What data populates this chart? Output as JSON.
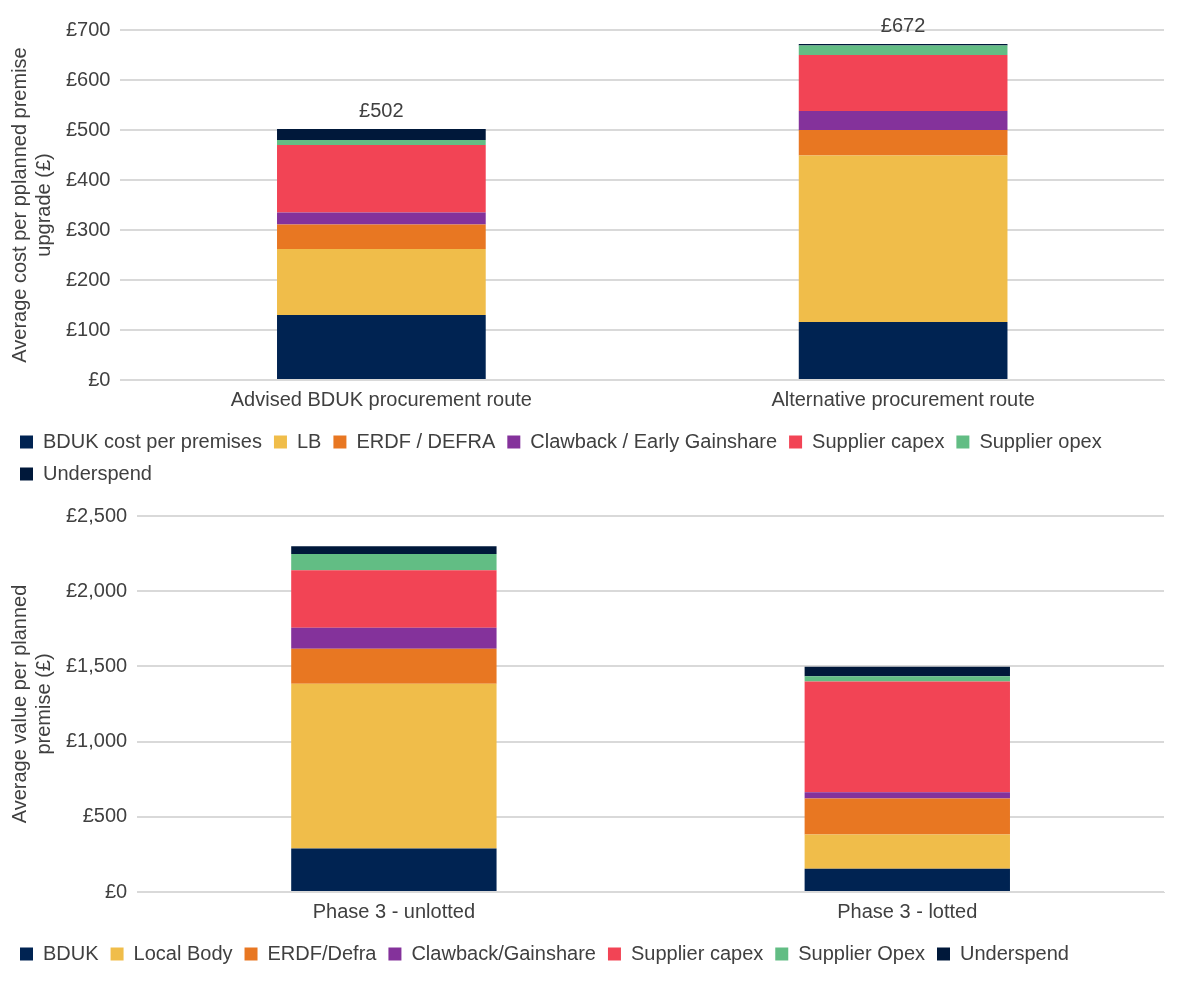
{
  "chart_data": [
    {
      "type": "bar",
      "stacked": true,
      "ylabel": "Average cost per pplanned premise upgrade (£)",
      "categories": [
        "Advised BDUK procurement route",
        "Alternative procurement route"
      ],
      "series": [
        {
          "name": "BDUK cost per premises",
          "color": "#002352",
          "values": [
            130,
            116
          ]
        },
        {
          "name": "LB",
          "color": "#f0bd4a",
          "values": [
            132,
            333
          ]
        },
        {
          "name": "ERDF / DEFRA",
          "color": "#e87722",
          "values": [
            49,
            51
          ]
        },
        {
          "name": "Clawback / Early Gainshare",
          "color": "#84329b",
          "values": [
            24,
            38
          ]
        },
        {
          "name": "Supplier capex",
          "color": "#f24455",
          "values": [
            135,
            112
          ]
        },
        {
          "name": "Supplier opex",
          "color": "#62bd84",
          "values": [
            10,
            19
          ]
        },
        {
          "name": "Underspend",
          "color": "#00183a",
          "values": [
            22,
            3
          ]
        }
      ],
      "totals": [
        "£502",
        "£672"
      ],
      "ylim": [
        0,
        700
      ],
      "yticks": [
        {
          "value": 0,
          "label": "£0"
        },
        {
          "value": 100,
          "label": "£100"
        },
        {
          "value": 200,
          "label": "£200"
        },
        {
          "value": 300,
          "label": "£300"
        },
        {
          "value": 400,
          "label": "£400"
        },
        {
          "value": 500,
          "label": "£500"
        },
        {
          "value": 600,
          "label": "£600"
        },
        {
          "value": 700,
          "label": "£700"
        }
      ],
      "grid": "y",
      "legend": "bottom"
    },
    {
      "type": "bar",
      "stacked": true,
      "ylabel": "Average value per planned premise (£)",
      "categories": [
        "Phase 3 - unlotted",
        "Phase 3 - lotted"
      ],
      "series": [
        {
          "name": "BDUK",
          "color": "#002352",
          "values": [
            290,
            155
          ]
        },
        {
          "name": "Local Body",
          "color": "#f0bd4a",
          "values": [
            1095,
            227
          ]
        },
        {
          "name": "ERDF/Defra",
          "color": "#e87722",
          "values": [
            233,
            240
          ]
        },
        {
          "name": "Clawback/Gainshare",
          "color": "#84329b",
          "values": [
            139,
            41
          ]
        },
        {
          "name": "Supplier capex",
          "color": "#f24455",
          "values": [
            382,
            736
          ]
        },
        {
          "name": "Supplier Opex",
          "color": "#62bd84",
          "values": [
            108,
            35
          ]
        },
        {
          "name": "Underspend",
          "color": "#00183a",
          "values": [
            52,
            63
          ]
        }
      ],
      "ylim": [
        0,
        2500
      ],
      "yticks": [
        {
          "value": 0,
          "label": "£0"
        },
        {
          "value": 500,
          "label": "£500"
        },
        {
          "value": 1000,
          "label": "£1,000"
        },
        {
          "value": 1500,
          "label": "£1,500"
        },
        {
          "value": 2000,
          "label": "£2,000"
        },
        {
          "value": 2500,
          "label": "£2,500"
        }
      ],
      "grid": "y",
      "legend": "bottom"
    }
  ]
}
